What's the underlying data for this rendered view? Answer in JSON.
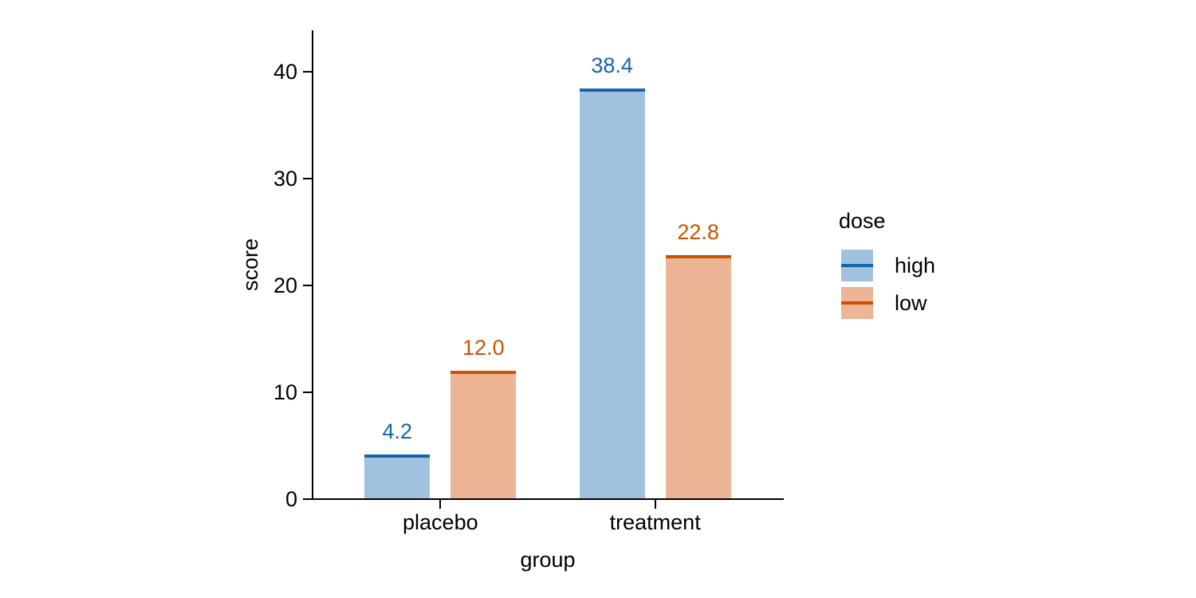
{
  "chart_data": {
    "type": "bar",
    "title": "",
    "xlabel": "group",
    "ylabel": "score",
    "categories": [
      "placebo",
      "treatment"
    ],
    "series": [
      {
        "name": "high",
        "values": [
          4.2,
          38.4
        ],
        "value_labels": [
          "4.2",
          "38.4"
        ],
        "line_color": "#1565ab",
        "fill_color": "#a1c2de"
      },
      {
        "name": "low",
        "values": [
          12.0,
          22.8
        ],
        "value_labels": [
          "12.0",
          "22.8"
        ],
        "line_color": "#cc5104",
        "fill_color": "#edb496"
      }
    ],
    "ytick_labels": [
      "0",
      "10",
      "20",
      "30",
      "40"
    ],
    "ytick_values": [
      0,
      10,
      20,
      30,
      40
    ],
    "ylim": [
      0,
      44
    ],
    "grid": false,
    "legend": {
      "title": "dose",
      "position": "right",
      "entries": [
        "high",
        "low"
      ]
    },
    "axis_color": "#000000",
    "text_color": "#000000"
  }
}
